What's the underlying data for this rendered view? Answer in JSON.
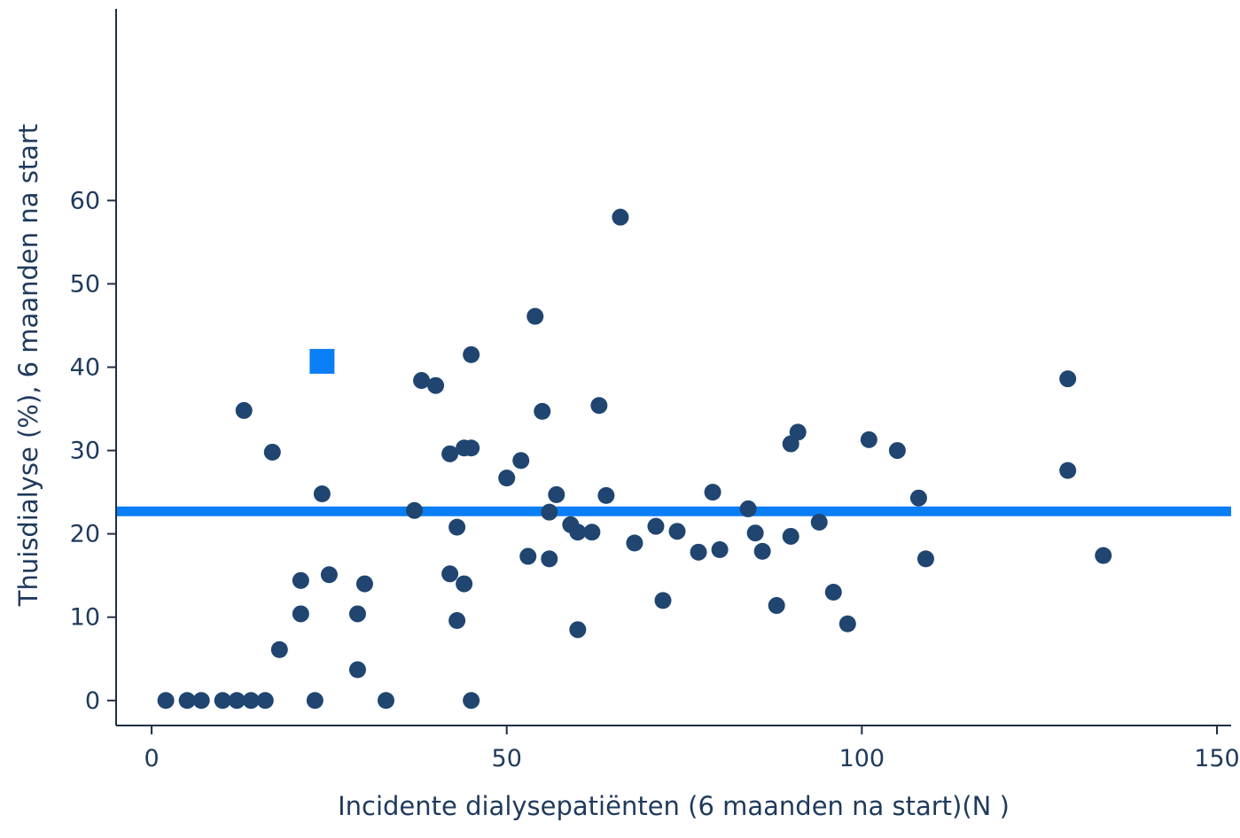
{
  "chart_data": {
    "type": "scatter",
    "title": "",
    "xlabel": "Incidente dialysepatiënten (6 maanden na start)(N )",
    "ylabel": "Thuisdialyse (%), 6 maanden na start",
    "xlim": [
      -5,
      152
    ],
    "ylim": [
      -3,
      83
    ],
    "xticks": [
      0,
      50,
      100,
      150
    ],
    "yticks": [
      0,
      10,
      20,
      30,
      40,
      50,
      60
    ],
    "grid": false,
    "reference_line": {
      "y": 22.7,
      "color": "#0a7ef5"
    },
    "highlight_point": {
      "x": 24,
      "y": 40.7,
      "color": "#0a7ef5",
      "marker": "square"
    },
    "series": [
      {
        "color": "#1f4570",
        "marker": "circle",
        "points": [
          [
            2,
            0
          ],
          [
            5,
            0
          ],
          [
            7,
            0
          ],
          [
            10,
            0
          ],
          [
            12,
            0
          ],
          [
            14,
            0
          ],
          [
            16,
            0
          ],
          [
            23,
            0
          ],
          [
            33,
            0
          ],
          [
            45,
            0
          ],
          [
            13,
            34.8
          ],
          [
            17,
            29.8
          ],
          [
            24,
            24.8
          ],
          [
            21,
            14.4
          ],
          [
            25,
            15.1
          ],
          [
            21,
            10.4
          ],
          [
            18,
            6.1
          ],
          [
            29,
            10.4
          ],
          [
            29,
            3.7
          ],
          [
            30,
            14
          ],
          [
            37,
            22.8
          ],
          [
            38,
            38.4
          ],
          [
            40,
            37.8
          ],
          [
            42,
            29.6
          ],
          [
            42,
            15.2
          ],
          [
            43,
            20.8
          ],
          [
            43,
            9.6
          ],
          [
            44,
            30.3
          ],
          [
            44,
            14
          ],
          [
            45,
            30.3
          ],
          [
            45,
            41.5
          ],
          [
            50,
            26.7
          ],
          [
            52,
            28.8
          ],
          [
            53,
            17.3
          ],
          [
            54,
            46.1
          ],
          [
            55,
            34.7
          ],
          [
            56,
            22.6
          ],
          [
            56,
            17
          ],
          [
            57,
            24.7
          ],
          [
            59,
            21.1
          ],
          [
            60,
            20.2
          ],
          [
            60,
            8.5
          ],
          [
            62,
            20.2
          ],
          [
            63,
            35.4
          ],
          [
            64,
            24.6
          ],
          [
            66,
            58
          ],
          [
            68,
            18.9
          ],
          [
            71,
            20.9
          ],
          [
            72,
            12
          ],
          [
            74,
            20.3
          ],
          [
            77,
            17.8
          ],
          [
            79,
            25
          ],
          [
            80,
            18.1
          ],
          [
            84,
            23
          ],
          [
            85,
            20.1
          ],
          [
            86,
            17.9
          ],
          [
            88,
            11.4
          ],
          [
            90,
            30.8
          ],
          [
            90,
            19.7
          ],
          [
            91,
            32.2
          ],
          [
            94,
            21.4
          ],
          [
            96,
            13
          ],
          [
            98,
            9.2
          ],
          [
            101,
            31.3
          ],
          [
            105,
            30
          ],
          [
            108,
            24.3
          ],
          [
            109,
            17
          ],
          [
            129,
            38.6
          ],
          [
            129,
            27.6
          ],
          [
            134,
            17.4
          ]
        ]
      }
    ]
  }
}
